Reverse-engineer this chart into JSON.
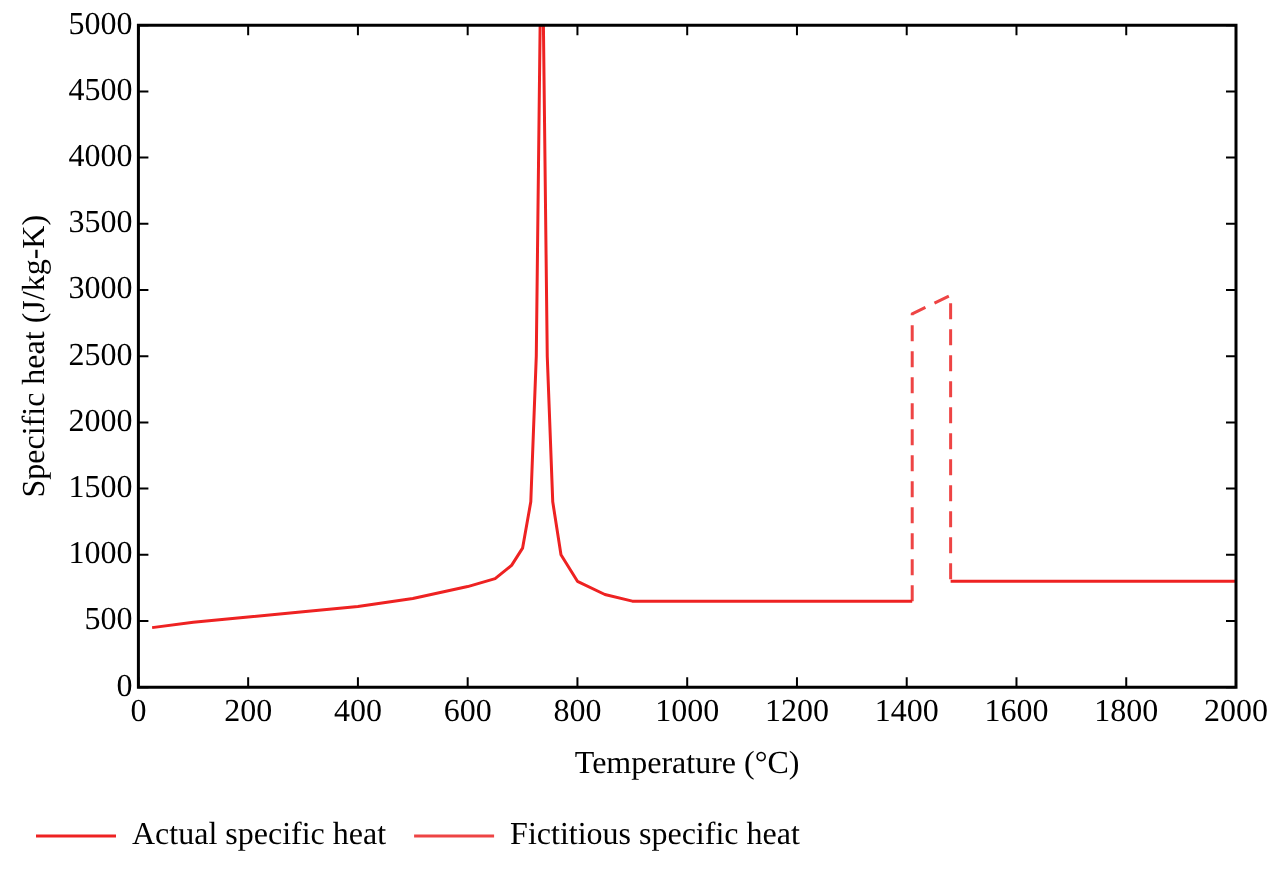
{
  "chart_data": {
    "type": "line",
    "xlabel": "Temperature (°C)",
    "ylabel": "Specific heat (J/kg-K)",
    "xlim": [
      0,
      2000
    ],
    "xticks": [
      0,
      200,
      400,
      600,
      800,
      1000,
      1200,
      1400,
      1600,
      1800,
      2000
    ],
    "ylim": [
      0,
      5000
    ],
    "yticks": [
      0,
      500,
      1000,
      1500,
      2000,
      2500,
      3000,
      3500,
      4000,
      4500,
      5000
    ],
    "grid": false,
    "legend": "bottom",
    "marker": "none",
    "series": [
      {
        "name": "Actual specific heat",
        "color": "#ee2222",
        "line_style": "solid",
        "x": [
          25,
          100,
          200,
          300,
          400,
          500,
          600,
          650,
          680,
          700,
          715,
          725,
          732,
          738,
          745,
          755,
          770,
          800,
          850,
          900,
          1410,
          null,
          1480,
          2000
        ],
        "values": [
          450,
          490,
          530,
          570,
          610,
          670,
          760,
          820,
          920,
          1050,
          1400,
          2500,
          5000,
          5000,
          2500,
          1400,
          1000,
          800,
          700,
          650,
          650,
          null,
          800,
          800
        ]
      },
      {
        "name": "Fictitious specific heat",
        "color": "#ee4444",
        "line_style": "dashed",
        "x": [
          1410,
          1410,
          1480,
          1480
        ],
        "values": [
          650,
          2820,
          2960,
          800
        ]
      }
    ]
  }
}
